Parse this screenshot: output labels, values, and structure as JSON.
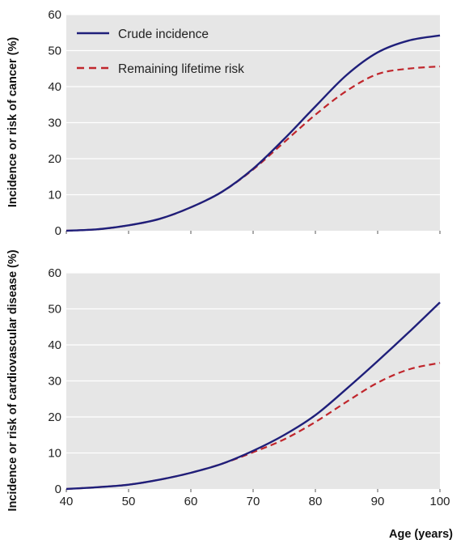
{
  "colors": {
    "plot_background": "#e6e6e6",
    "gridline": "#ffffff",
    "crude_incidence": "#1f1f7a",
    "remaining_lifetime_risk": "#c0262c"
  },
  "legend": {
    "crude_label": "Crude incidence",
    "risk_label": "Remaining lifetime risk"
  },
  "xaxis_label": "Age (years)",
  "chart_data": [
    {
      "type": "line",
      "panel": "top",
      "title": "",
      "xlabel": "",
      "ylabel": "Incidence or risk of cancer (%)",
      "xlim": [
        40,
        100
      ],
      "ylim": [
        0,
        60
      ],
      "xticks": [
        40,
        50,
        60,
        70,
        80,
        90,
        100
      ],
      "yticks": [
        0,
        10,
        20,
        30,
        40,
        50,
        60
      ],
      "x_tick_labels_shown": false,
      "grid": true,
      "legend_position": "top-left",
      "x": [
        40,
        45,
        50,
        55,
        60,
        65,
        70,
        75,
        80,
        85,
        90,
        95,
        100
      ],
      "series": [
        {
          "name": "Crude incidence",
          "style": "solid",
          "values": [
            0,
            0.4,
            1.5,
            3.3,
            6.5,
            10.8,
            17.2,
            25.5,
            34.5,
            43.2,
            49.5,
            52.8,
            54.2
          ]
        },
        {
          "name": "Remaining lifetime risk",
          "style": "dashed",
          "values": [
            0,
            0.4,
            1.5,
            3.3,
            6.5,
            10.8,
            17.0,
            24.6,
            32.2,
            38.8,
            43.5,
            45.0,
            45.6
          ]
        }
      ]
    },
    {
      "type": "line",
      "panel": "bottom",
      "title": "",
      "xlabel": "Age (years)",
      "ylabel": "Incidence or risk of cardiovascular disease (%)",
      "xlim": [
        40,
        100
      ],
      "ylim": [
        0,
        60
      ],
      "xticks": [
        40,
        50,
        60,
        70,
        80,
        90,
        100
      ],
      "yticks": [
        0,
        10,
        20,
        30,
        40,
        50,
        60
      ],
      "x_tick_labels_shown": true,
      "grid": true,
      "x": [
        40,
        45,
        50,
        55,
        60,
        65,
        70,
        75,
        80,
        85,
        90,
        95,
        100
      ],
      "series": [
        {
          "name": "Crude incidence",
          "style": "solid",
          "values": [
            0,
            0.5,
            1.2,
            2.6,
            4.5,
            7.0,
            10.6,
            15.0,
            20.5,
            27.8,
            35.5,
            43.5,
            51.8
          ]
        },
        {
          "name": "Remaining lifetime risk",
          "style": "dashed",
          "values": [
            0,
            0.5,
            1.2,
            2.6,
            4.5,
            7.0,
            10.2,
            13.8,
            18.6,
            24.2,
            29.5,
            33.2,
            35.0
          ]
        }
      ]
    }
  ]
}
